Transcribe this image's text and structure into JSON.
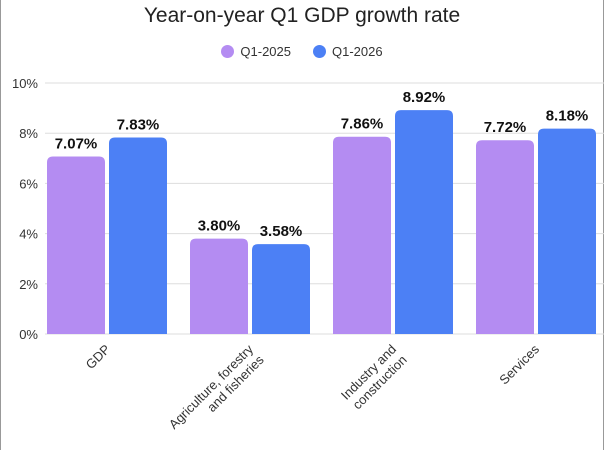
{
  "chart_data": {
    "type": "bar",
    "title": "Year-on-year Q1 GDP growth rate",
    "categories": [
      "GDP",
      "Agriculture, forestry and fisheries",
      "Industry and construction",
      "Services"
    ],
    "series": [
      {
        "name": "Q1-2025",
        "color": "#b48cf2",
        "values": [
          7.07,
          3.8,
          7.86,
          7.72
        ],
        "labels": [
          "7.07%",
          "3.80%",
          "7.86%",
          "7.72%"
        ]
      },
      {
        "name": "Q1-2026",
        "color": "#4c80f5",
        "values": [
          7.83,
          3.58,
          8.92,
          8.18
        ],
        "labels": [
          "7.83%",
          "3.58%",
          "8.92%",
          "8.18%"
        ]
      }
    ],
    "ylim": [
      0,
      10
    ],
    "yticks": [
      0,
      2,
      4,
      6,
      8,
      10
    ],
    "ytick_labels": [
      "0%",
      "2%",
      "4%",
      "6%",
      "8%",
      "10%"
    ],
    "grid": true,
    "legend_position": "top-center"
  }
}
